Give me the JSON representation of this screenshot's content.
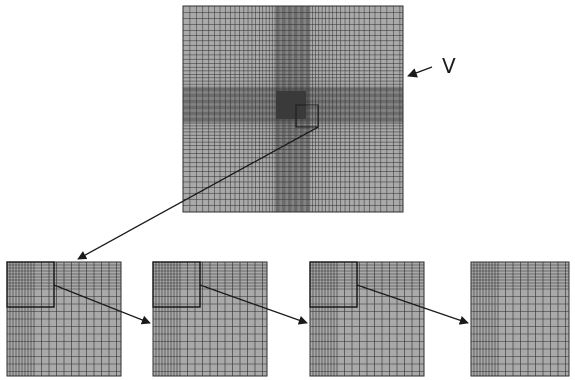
{
  "figure": {
    "label_v": "V"
  },
  "colors": {
    "mesh_fill": "#a9a9a9",
    "mesh_line": "#2e2e2e",
    "dense_core": "#3a3a3a",
    "arrow": "#1a1a1a",
    "background": "#ffffff"
  },
  "panels": {
    "main": "full-domain-mesh",
    "zoom_levels": [
      "zoom-level-1",
      "zoom-level-2",
      "zoom-level-3",
      "zoom-level-4"
    ]
  }
}
